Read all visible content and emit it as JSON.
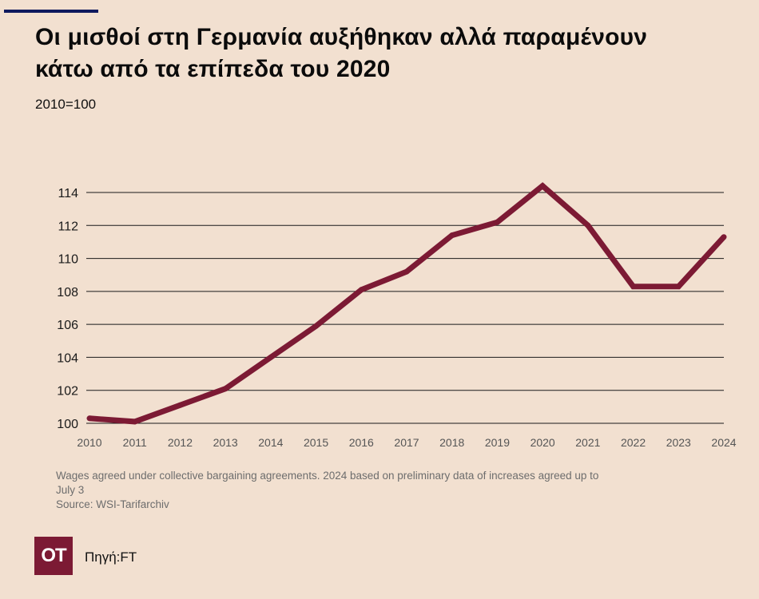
{
  "header": {
    "title_line1": "Οι μισθοί στη  Γερμανία αυξήθηκαν αλλά παραμένουν",
    "title_line2": "κάτω από τα επίπεδα του 2020",
    "subtitle": "2010=100"
  },
  "notes": {
    "line1": "Wages agreed under collective bargaining agreements. 2024 based on preliminary data of increases agreed up to",
    "line2": "July 3",
    "line3": "Source: WSI-Tarifarchiv"
  },
  "footer": {
    "logo_text": "OT",
    "source_label": "Πηγή:FT"
  },
  "colors": {
    "background": "#f2e0d0",
    "line": "#7c1a34",
    "accent_bar": "#0f1a5e"
  },
  "chart_data": {
    "type": "line",
    "title": "Οι μισθοί στη  Γερμανία αυξήθηκαν αλλά παραμένουν κάτω από τα επίπεδα του 2020",
    "subtitle": "2010=100",
    "xlabel": "",
    "ylabel": "",
    "x": [
      "2010",
      "2011",
      "2012",
      "2013",
      "2014",
      "2015",
      "2016",
      "2017",
      "2018",
      "2019",
      "2020",
      "2021",
      "2022",
      "2023",
      "2024"
    ],
    "series": [
      {
        "values": [
          100.3,
          100.1,
          101.1,
          102.1,
          104.0,
          105.9,
          108.1,
          109.2,
          111.4,
          112.2,
          114.4,
          112.0,
          108.3,
          108.3,
          111.3
        ]
      }
    ],
    "ylim": [
      100,
      114
    ],
    "yticks": [
      100,
      102,
      104,
      106,
      108,
      110,
      112,
      114
    ],
    "grid": true,
    "legend": "none"
  }
}
